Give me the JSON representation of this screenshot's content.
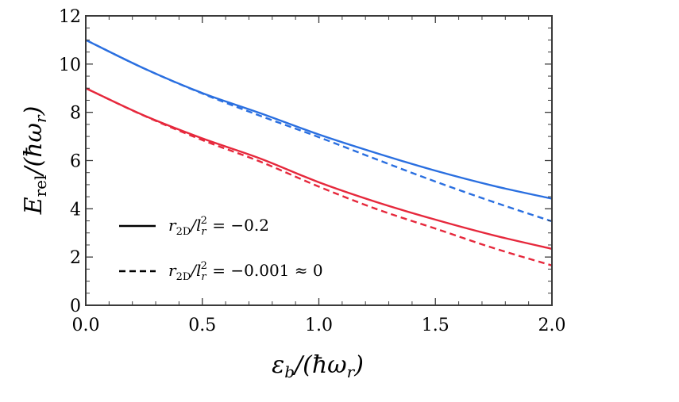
{
  "chart_data": {
    "type": "line",
    "xlabel": "ε_b/(ħω_r)",
    "ylabel": "E_rel/(ħω_r)",
    "xlim": [
      0,
      2
    ],
    "ylim": [
      0,
      12
    ],
    "xticks": [
      "0.0",
      "0.5",
      "1.0",
      "1.5",
      "2.0"
    ],
    "yticks": [
      "0",
      "2",
      "4",
      "6",
      "8",
      "10",
      "12"
    ],
    "grid": false,
    "legend_position": "lower-left",
    "legend": [
      {
        "label": "r_2D/l_r^2 = −0.2",
        "style": "solid"
      },
      {
        "label": "r_2D/l_r^2 = −0.001 ≈ 0",
        "style": "dashed"
      }
    ],
    "colors": {
      "blue": "#2a6fe0",
      "red": "#e6283c"
    },
    "series": [
      {
        "color": "blue",
        "style": "solid",
        "x": [
          0,
          0.25,
          0.5,
          0.75,
          1.0,
          1.25,
          1.5,
          1.75,
          2.0
        ],
        "y": [
          11.0,
          9.82,
          8.8,
          7.96,
          7.08,
          6.3,
          5.58,
          4.95,
          4.42
        ]
      },
      {
        "color": "blue",
        "style": "dashed",
        "x": [
          0,
          0.25,
          0.5,
          0.75,
          1.0,
          1.25,
          1.5,
          1.75,
          2.0
        ],
        "y": [
          11.0,
          9.82,
          8.78,
          7.85,
          6.97,
          6.04,
          5.13,
          4.28,
          3.48
        ]
      },
      {
        "color": "red",
        "style": "solid",
        "x": [
          0,
          0.25,
          0.5,
          0.75,
          1.0,
          1.25,
          1.5,
          1.75,
          2.0
        ],
        "y": [
          9.0,
          7.87,
          6.92,
          6.08,
          5.1,
          4.27,
          3.55,
          2.9,
          2.34
        ]
      },
      {
        "color": "red",
        "style": "dashed",
        "x": [
          0,
          0.25,
          0.5,
          0.75,
          1.0,
          1.25,
          1.5,
          1.75,
          2.0
        ],
        "y": [
          9.0,
          7.86,
          6.85,
          5.95,
          4.92,
          3.98,
          3.18,
          2.37,
          1.65
        ]
      }
    ]
  }
}
